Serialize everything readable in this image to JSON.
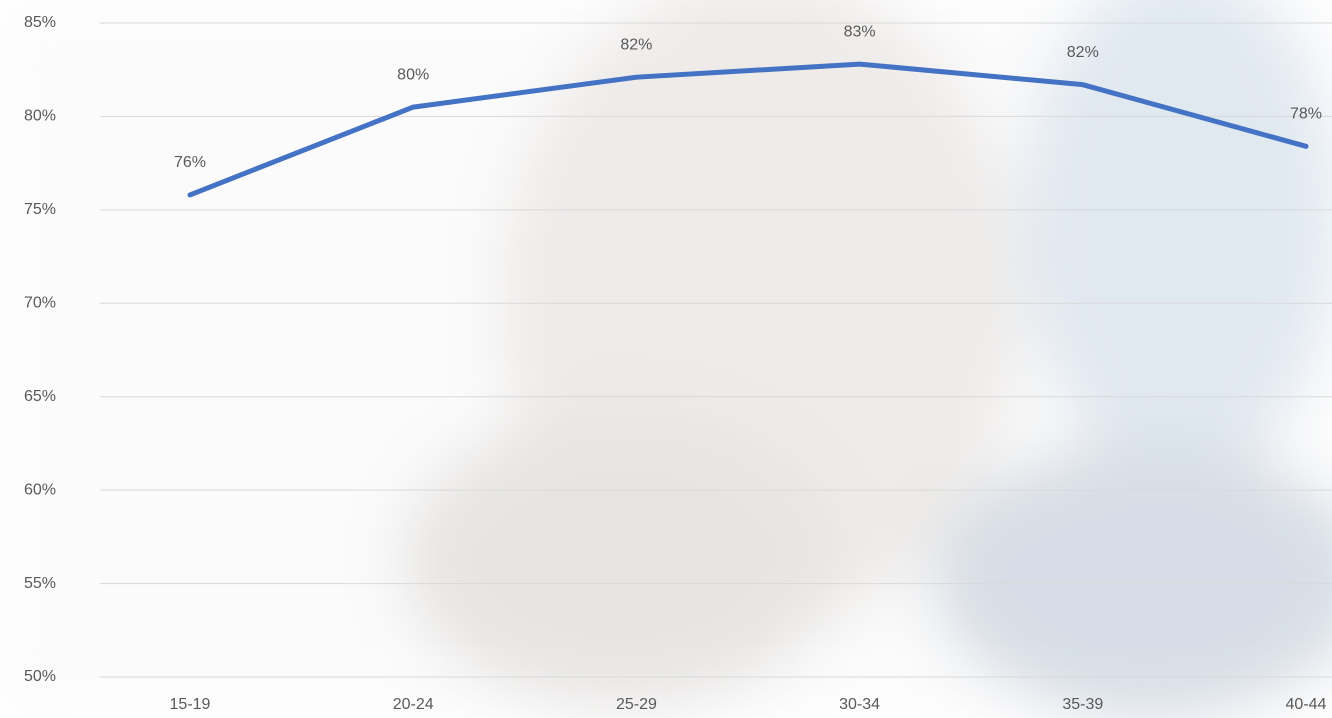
{
  "chart_data": {
    "type": "line",
    "categories": [
      "15-19",
      "20-24",
      "25-29",
      "30-34",
      "35-39",
      "40-44"
    ],
    "series": [
      {
        "color": "#4472c4",
        "values": [
          75.8,
          80.5,
          82.1,
          82.8,
          81.7,
          78.4
        ],
        "value_labels": [
          "76%",
          "80%",
          "82%",
          "83%",
          "82%",
          "78%"
        ]
      }
    ],
    "ylim": [
      50,
      85
    ],
    "yticks": [
      {
        "value": 50,
        "label": "50%"
      },
      {
        "value": 55,
        "label": "55%"
      },
      {
        "value": 60,
        "label": "60%"
      },
      {
        "value": 65,
        "label": "65%"
      },
      {
        "value": 70,
        "label": "70%"
      },
      {
        "value": 75,
        "label": "75%"
      },
      {
        "value": 80,
        "label": "80%"
      },
      {
        "value": 85,
        "label": "85%"
      }
    ],
    "grid": true
  }
}
